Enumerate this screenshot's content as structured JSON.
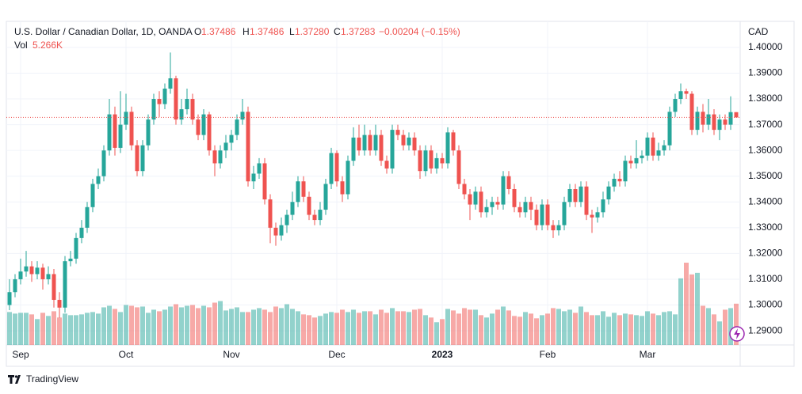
{
  "chart_data": {
    "type": "candlestick",
    "title": "U.S. Dollar / Canadian Dollar, 1D, OANDA",
    "legend": {
      "o_label": "O",
      "o": "1.37486",
      "h_label": "H",
      "h": "1.37486",
      "l_label": "L",
      "l": "1.37280",
      "c_label": "C",
      "c": "1.37283",
      "change": "−0.00204 (−0.15%)",
      "vol_label": "Vol",
      "vol": "5.266K"
    },
    "y_axis_label": "CAD",
    "ylim": [
      1.2845,
      1.4098
    ],
    "yticks": [
      {
        "value": 1.29,
        "label": "1.29000"
      },
      {
        "value": 1.3,
        "label": "1.30000"
      },
      {
        "value": 1.31,
        "label": "1.31000"
      },
      {
        "value": 1.32,
        "label": "1.32000"
      },
      {
        "value": 1.33,
        "label": "1.33000"
      },
      {
        "value": 1.34,
        "label": "1.34000"
      },
      {
        "value": 1.35,
        "label": "1.35000"
      },
      {
        "value": 1.36,
        "label": "1.36000"
      },
      {
        "value": 1.37,
        "label": "1.37000"
      },
      {
        "value": 1.38,
        "label": "1.38000"
      },
      {
        "value": 1.39,
        "label": "1.39000"
      },
      {
        "value": 1.4,
        "label": "1.40000"
      }
    ],
    "grid": true,
    "up_color": "#26a69a",
    "down_color": "#ef5350",
    "categories": [
      null,
      null,
      "Sep",
      null,
      null,
      null,
      null,
      null,
      null,
      null,
      null,
      null,
      null,
      null,
      null,
      null,
      null,
      null,
      null,
      null,
      null,
      "Oct",
      null,
      null,
      null,
      null,
      null,
      null,
      null,
      null,
      null,
      null,
      null,
      null,
      null,
      null,
      null,
      null,
      null,
      null,
      "Nov",
      null,
      null,
      null,
      null,
      null,
      null,
      null,
      null,
      null,
      null,
      null,
      null,
      null,
      null,
      null,
      null,
      null,
      null,
      "Dec",
      null,
      null,
      null,
      null,
      null,
      null,
      null,
      null,
      null,
      null,
      null,
      null,
      null,
      null,
      null,
      null,
      null,
      null,
      "2023",
      null,
      null,
      null,
      null,
      null,
      null,
      null,
      null,
      null,
      null,
      null,
      null,
      null,
      null,
      null,
      null,
      null,
      null,
      "Feb",
      null,
      null,
      null,
      null,
      null,
      null,
      null,
      null,
      null,
      null,
      null,
      null,
      null,
      null,
      null,
      null,
      null,
      "Mar",
      null,
      null,
      null,
      null,
      null,
      null,
      null,
      null,
      null,
      null,
      null,
      null,
      null,
      null,
      null,
      null
    ],
    "open": [
      1.3,
      1.305,
      1.31,
      1.313,
      1.315,
      1.312,
      1.3145,
      1.31,
      1.312,
      1.302,
      1.299,
      1.317,
      1.318,
      1.326,
      1.33,
      1.338,
      1.347,
      1.35,
      1.36,
      1.374,
      1.361,
      1.37,
      1.375,
      1.362,
      1.352,
      1.362,
      1.372,
      1.38,
      1.378,
      1.384,
      1.388,
      1.372,
      1.376,
      1.38,
      1.372,
      1.366,
      1.374,
      1.36,
      1.355,
      1.36,
      1.363,
      1.366,
      1.372,
      1.375,
      1.348,
      1.351,
      1.355,
      1.341,
      1.33,
      1.327,
      1.331,
      1.335,
      1.34,
      1.348,
      1.342,
      1.335,
      1.333,
      1.337,
      1.347,
      1.359,
      1.348,
      1.343,
      1.356,
      1.365,
      1.36,
      1.366,
      1.36,
      1.366,
      1.356,
      1.353,
      1.368,
      1.366,
      1.362,
      1.365,
      1.36,
      1.352,
      1.36,
      1.353,
      1.357,
      1.355,
      1.367,
      1.36,
      1.347,
      1.343,
      1.339,
      1.344,
      1.336,
      1.338,
      1.34,
      1.339,
      1.35,
      1.345,
      1.338,
      1.336,
      1.34,
      1.337,
      1.331,
      1.339,
      1.331,
      1.329,
      1.331,
      1.34,
      1.345,
      1.34,
      1.346,
      1.335,
      1.334,
      1.336,
      1.341,
      1.346,
      1.349,
      1.348,
      1.356,
      1.355,
      1.357,
      1.358,
      1.365,
      1.358,
      1.36,
      1.362,
      1.375,
      1.38,
      1.383,
      1.382,
      1.368,
      1.375,
      1.37,
      1.374,
      1.368,
      1.372,
      1.37,
      1.37486
    ],
    "high": [
      1.31,
      1.312,
      1.318,
      1.321,
      1.317,
      1.317,
      1.316,
      1.315,
      1.314,
      1.305,
      1.319,
      1.321,
      1.328,
      1.333,
      1.34,
      1.349,
      1.353,
      1.362,
      1.38,
      1.377,
      1.383,
      1.382,
      1.377,
      1.364,
      1.364,
      1.374,
      1.382,
      1.383,
      1.386,
      1.398,
      1.389,
      1.38,
      1.384,
      1.382,
      1.374,
      1.376,
      1.375,
      1.362,
      1.362,
      1.366,
      1.368,
      1.374,
      1.38,
      1.377,
      1.354,
      1.357,
      1.357,
      1.343,
      1.332,
      1.334,
      1.337,
      1.344,
      1.35,
      1.35,
      1.344,
      1.337,
      1.34,
      1.349,
      1.361,
      1.36,
      1.35,
      1.358,
      1.369,
      1.37,
      1.37,
      1.368,
      1.37,
      1.368,
      1.358,
      1.37,
      1.37,
      1.368,
      1.367,
      1.367,
      1.362,
      1.362,
      1.362,
      1.359,
      1.359,
      1.369,
      1.368,
      1.362,
      1.349,
      1.345,
      1.346,
      1.346,
      1.341,
      1.342,
      1.342,
      1.352,
      1.352,
      1.347,
      1.34,
      1.342,
      1.342,
      1.339,
      1.341,
      1.341,
      1.333,
      1.333,
      1.342,
      1.347,
      1.347,
      1.348,
      1.348,
      1.337,
      1.338,
      1.344,
      1.348,
      1.351,
      1.352,
      1.358,
      1.358,
      1.364,
      1.36,
      1.367,
      1.367,
      1.363,
      1.364,
      1.377,
      1.382,
      1.386,
      1.384,
      1.383,
      1.377,
      1.378,
      1.38,
      1.376,
      1.374,
      1.374,
      1.381,
      1.37486
    ],
    "low": [
      1.298,
      1.303,
      1.308,
      1.311,
      1.309,
      1.31,
      1.306,
      1.308,
      1.299,
      1.295,
      1.297,
      1.315,
      1.316,
      1.324,
      1.328,
      1.336,
      1.345,
      1.348,
      1.358,
      1.358,
      1.359,
      1.368,
      1.36,
      1.35,
      1.35,
      1.36,
      1.37,
      1.373,
      1.376,
      1.382,
      1.37,
      1.37,
      1.374,
      1.37,
      1.364,
      1.364,
      1.358,
      1.35,
      1.353,
      1.357,
      1.36,
      1.364,
      1.37,
      1.346,
      1.345,
      1.349,
      1.339,
      1.324,
      1.323,
      1.325,
      1.328,
      1.333,
      1.338,
      1.34,
      1.333,
      1.331,
      1.331,
      1.335,
      1.345,
      1.346,
      1.34,
      1.341,
      1.354,
      1.358,
      1.358,
      1.358,
      1.358,
      1.354,
      1.351,
      1.351,
      1.364,
      1.36,
      1.36,
      1.358,
      1.349,
      1.35,
      1.351,
      1.351,
      1.353,
      1.353,
      1.358,
      1.345,
      1.341,
      1.333,
      1.337,
      1.334,
      1.334,
      1.335,
      1.337,
      1.337,
      1.343,
      1.336,
      1.334,
      1.334,
      1.333,
      1.329,
      1.329,
      1.329,
      1.326,
      1.327,
      1.329,
      1.338,
      1.338,
      1.338,
      1.333,
      1.328,
      1.332,
      1.334,
      1.339,
      1.344,
      1.346,
      1.346,
      1.353,
      1.353,
      1.355,
      1.356,
      1.356,
      1.356,
      1.358,
      1.36,
      1.373,
      1.378,
      1.38,
      1.366,
      1.366,
      1.367,
      1.368,
      1.366,
      1.364,
      1.368,
      1.368,
      1.3728
    ],
    "close": [
      1.305,
      1.31,
      1.313,
      1.315,
      1.312,
      1.3145,
      1.31,
      1.312,
      1.302,
      1.299,
      1.317,
      1.318,
      1.326,
      1.33,
      1.338,
      1.347,
      1.35,
      1.36,
      1.374,
      1.361,
      1.37,
      1.375,
      1.362,
      1.352,
      1.362,
      1.372,
      1.38,
      1.378,
      1.384,
      1.388,
      1.372,
      1.376,
      1.38,
      1.372,
      1.366,
      1.374,
      1.36,
      1.355,
      1.36,
      1.363,
      1.366,
      1.372,
      1.375,
      1.348,
      1.351,
      1.355,
      1.341,
      1.33,
      1.327,
      1.331,
      1.335,
      1.34,
      1.348,
      1.342,
      1.335,
      1.333,
      1.337,
      1.347,
      1.359,
      1.348,
      1.343,
      1.356,
      1.365,
      1.36,
      1.366,
      1.36,
      1.366,
      1.356,
      1.353,
      1.368,
      1.366,
      1.362,
      1.365,
      1.36,
      1.352,
      1.36,
      1.353,
      1.357,
      1.355,
      1.367,
      1.36,
      1.347,
      1.343,
      1.339,
      1.344,
      1.336,
      1.338,
      1.34,
      1.339,
      1.35,
      1.345,
      1.338,
      1.336,
      1.34,
      1.337,
      1.331,
      1.339,
      1.331,
      1.329,
      1.331,
      1.34,
      1.345,
      1.34,
      1.346,
      1.335,
      1.334,
      1.336,
      1.341,
      1.346,
      1.349,
      1.348,
      1.356,
      1.355,
      1.357,
      1.358,
      1.365,
      1.358,
      1.36,
      1.362,
      1.375,
      1.38,
      1.383,
      1.382,
      1.368,
      1.375,
      1.37,
      1.374,
      1.368,
      1.372,
      1.37,
      1.37487,
      1.37283
    ],
    "volume": [
      4200,
      4000,
      4100,
      4100,
      3900,
      3300,
      4100,
      3700,
      4300,
      3500,
      4000,
      3800,
      3800,
      3900,
      4100,
      4200,
      4000,
      4800,
      5000,
      4600,
      4200,
      5100,
      5000,
      4800,
      4900,
      4100,
      4500,
      4300,
      4500,
      4900,
      5200,
      4800,
      5000,
      5100,
      4700,
      5000,
      4800,
      5400,
      5600,
      4400,
      4600,
      4800,
      4200,
      4200,
      4500,
      4700,
      4500,
      4200,
      4900,
      4700,
      5200,
      4600,
      4300,
      3900,
      3800,
      3500,
      3700,
      4000,
      4200,
      4100,
      4500,
      4200,
      4500,
      4100,
      4300,
      4300,
      3900,
      4500,
      4100,
      4700,
      4300,
      4300,
      4200,
      4500,
      4600,
      3800,
      3500,
      2900,
      3300,
      4600,
      4400,
      4000,
      4700,
      4500,
      4500,
      3800,
      3500,
      4000,
      4500,
      4900,
      4400,
      3700,
      3600,
      4200,
      4000,
      3400,
      3800,
      4000,
      4700,
      4600,
      4300,
      4500,
      4100,
      4900,
      4200,
      3800,
      3800,
      4300,
      3600,
      4100,
      3800,
      4000,
      3900,
      3800,
      3700,
      4300,
      4000,
      3800,
      4200,
      4300,
      3900,
      8500,
      10500,
      9000,
      9200,
      5000,
      4700,
      3900,
      3000,
      4500,
      4700,
      5266
    ]
  },
  "footer": {
    "brand": "TradingView"
  }
}
